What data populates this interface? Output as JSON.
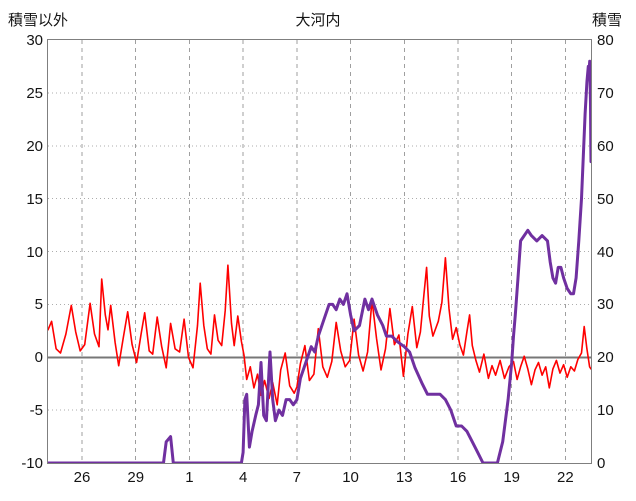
{
  "header": {
    "left_axis_title": "積雪以外",
    "title": "大河内",
    "right_axis_title": "積雪"
  },
  "colors": {
    "background": "#ffffff",
    "text": "#141414",
    "frame": "#7f7f7f",
    "grid_vertical": "#9f9f9f",
    "grid_horizontal": "#adadad",
    "zero_line": "#777777",
    "temperature_line": "#ff0000",
    "snow_line": "#7030a0"
  },
  "chart_data": {
    "type": "line",
    "title": "大河内",
    "grid": true,
    "legend": "none",
    "x_axis": {
      "unit": "date (12/26 - 1/22 ticks, every 3 days)",
      "tick_labels": [
        "26",
        "29",
        "1",
        "4",
        "7",
        "10",
        "13",
        "16",
        "19",
        "22"
      ],
      "tick_values": [
        0,
        3,
        6,
        9,
        12,
        15,
        18,
        21,
        24,
        27
      ],
      "range": [
        -1.9,
        28.43
      ]
    },
    "y_axis_left": {
      "label": "積雪以外",
      "ticks": [
        30,
        25,
        20,
        15,
        10,
        5,
        0,
        -5,
        -10
      ],
      "range": [
        -10,
        30
      ]
    },
    "y_axis_right": {
      "label": "積雪",
      "ticks": [
        80,
        70,
        60,
        50,
        40,
        30,
        20,
        10,
        0
      ],
      "range": [
        0,
        80
      ]
    },
    "series": [
      {
        "name": "積雪以外",
        "axis": "left",
        "color": "#ff0000",
        "width": 1.6,
        "points": [
          [
            -1.9,
            2.6
          ],
          [
            -1.7,
            3.4
          ],
          [
            -1.45,
            0.8
          ],
          [
            -1.2,
            0.4
          ],
          [
            -0.9,
            2.2
          ],
          [
            -0.6,
            4.9
          ],
          [
            -0.35,
            2.4
          ],
          [
            -0.1,
            0.6
          ],
          [
            0.15,
            1.2
          ],
          [
            0.45,
            5.1
          ],
          [
            0.7,
            2.2
          ],
          [
            0.95,
            1.0
          ],
          [
            1.1,
            7.4
          ],
          [
            1.3,
            4.0
          ],
          [
            1.45,
            2.6
          ],
          [
            1.6,
            4.9
          ],
          [
            1.85,
            1.4
          ],
          [
            2.05,
            -0.8
          ],
          [
            2.3,
            1.8
          ],
          [
            2.55,
            4.3
          ],
          [
            2.8,
            1.2
          ],
          [
            3.05,
            -0.5
          ],
          [
            3.3,
            2.2
          ],
          [
            3.5,
            4.2
          ],
          [
            3.75,
            0.6
          ],
          [
            3.95,
            0.3
          ],
          [
            4.2,
            3.8
          ],
          [
            4.45,
            1.0
          ],
          [
            4.7,
            -1.0
          ],
          [
            4.95,
            3.2
          ],
          [
            5.2,
            0.8
          ],
          [
            5.45,
            0.5
          ],
          [
            5.7,
            3.6
          ],
          [
            5.95,
            0.0
          ],
          [
            6.2,
            -1.0
          ],
          [
            6.45,
            3.0
          ],
          [
            6.6,
            7.0
          ],
          [
            6.8,
            3.0
          ],
          [
            7.0,
            0.8
          ],
          [
            7.2,
            0.3
          ],
          [
            7.4,
            4.0
          ],
          [
            7.6,
            1.6
          ],
          [
            7.8,
            1.1
          ],
          [
            8.0,
            4.4
          ],
          [
            8.15,
            8.7
          ],
          [
            8.35,
            3.2
          ],
          [
            8.5,
            1.1
          ],
          [
            8.7,
            3.9
          ],
          [
            8.9,
            1.5
          ],
          [
            9.05,
            0.2
          ],
          [
            9.2,
            -2.1
          ],
          [
            9.4,
            -0.9
          ],
          [
            9.6,
            -2.9
          ],
          [
            9.8,
            -1.6
          ],
          [
            10.0,
            -3.6
          ],
          [
            10.2,
            -2.2
          ],
          [
            10.45,
            -3.9
          ],
          [
            10.65,
            -2.4
          ],
          [
            10.9,
            -4.5
          ],
          [
            11.1,
            -1.2
          ],
          [
            11.35,
            0.4
          ],
          [
            11.6,
            -2.7
          ],
          [
            11.85,
            -3.4
          ],
          [
            12.0,
            -2.8
          ],
          [
            12.2,
            -0.6
          ],
          [
            12.45,
            1.1
          ],
          [
            12.7,
            -2.2
          ],
          [
            12.95,
            -1.6
          ],
          [
            13.2,
            2.7
          ],
          [
            13.45,
            -0.9
          ],
          [
            13.7,
            -1.9
          ],
          [
            13.95,
            -0.4
          ],
          [
            14.2,
            3.3
          ],
          [
            14.45,
            0.6
          ],
          [
            14.7,
            -0.9
          ],
          [
            14.95,
            -0.3
          ],
          [
            15.2,
            3.6
          ],
          [
            15.45,
            0.2
          ],
          [
            15.7,
            -1.3
          ],
          [
            15.95,
            0.5
          ],
          [
            16.2,
            5.4
          ],
          [
            16.45,
            1.8
          ],
          [
            16.7,
            -1.2
          ],
          [
            16.95,
            0.8
          ],
          [
            17.2,
            4.6
          ],
          [
            17.45,
            1.2
          ],
          [
            17.7,
            2.1
          ],
          [
            17.95,
            -1.8
          ],
          [
            18.2,
            2.2
          ],
          [
            18.45,
            4.8
          ],
          [
            18.7,
            0.9
          ],
          [
            18.9,
            2.4
          ],
          [
            19.1,
            6.0
          ],
          [
            19.25,
            8.5
          ],
          [
            19.4,
            3.9
          ],
          [
            19.6,
            2.0
          ],
          [
            19.9,
            3.4
          ],
          [
            20.1,
            5.2
          ],
          [
            20.3,
            9.4
          ],
          [
            20.5,
            4.6
          ],
          [
            20.7,
            1.7
          ],
          [
            20.9,
            2.8
          ],
          [
            21.1,
            1.2
          ],
          [
            21.3,
            0.2
          ],
          [
            21.5,
            2.4
          ],
          [
            21.65,
            4.0
          ],
          [
            21.8,
            1.1
          ],
          [
            22.0,
            -0.3
          ],
          [
            22.2,
            -1.4
          ],
          [
            22.45,
            0.3
          ],
          [
            22.7,
            -2.0
          ],
          [
            22.9,
            -0.8
          ],
          [
            23.1,
            -1.7
          ],
          [
            23.35,
            -0.3
          ],
          [
            23.6,
            -2.0
          ],
          [
            23.85,
            -0.9
          ],
          [
            24.1,
            -0.4
          ],
          [
            24.3,
            -2.1
          ],
          [
            24.5,
            -0.9
          ],
          [
            24.7,
            0.1
          ],
          [
            24.9,
            -1.1
          ],
          [
            25.1,
            -2.6
          ],
          [
            25.3,
            -1.2
          ],
          [
            25.5,
            -0.5
          ],
          [
            25.7,
            -1.7
          ],
          [
            25.9,
            -0.9
          ],
          [
            26.1,
            -2.9
          ],
          [
            26.3,
            -1.1
          ],
          [
            26.5,
            -0.3
          ],
          [
            26.7,
            -1.5
          ],
          [
            26.9,
            -0.7
          ],
          [
            27.1,
            -1.9
          ],
          [
            27.3,
            -0.9
          ],
          [
            27.5,
            -1.3
          ],
          [
            27.7,
            -0.2
          ],
          [
            27.9,
            0.4
          ],
          [
            28.05,
            2.9
          ],
          [
            28.2,
            0.8
          ],
          [
            28.35,
            -0.9
          ],
          [
            28.43,
            -1.1
          ]
        ]
      },
      {
        "name": "積雪",
        "axis": "right",
        "color": "#7030a0",
        "width": 3,
        "points": [
          [
            -1.9,
            0
          ],
          [
            4.55,
            0
          ],
          [
            4.7,
            4
          ],
          [
            4.95,
            5
          ],
          [
            5.1,
            0
          ],
          [
            8.9,
            0
          ],
          [
            9.0,
            2
          ],
          [
            9.1,
            12
          ],
          [
            9.2,
            13
          ],
          [
            9.35,
            3
          ],
          [
            9.5,
            6
          ],
          [
            9.7,
            9
          ],
          [
            9.85,
            11
          ],
          [
            10.0,
            19
          ],
          [
            10.15,
            9
          ],
          [
            10.3,
            8
          ],
          [
            10.5,
            21
          ],
          [
            10.65,
            12
          ],
          [
            10.8,
            8
          ],
          [
            11.0,
            10
          ],
          [
            11.2,
            9
          ],
          [
            11.4,
            12
          ],
          [
            11.6,
            12
          ],
          [
            11.8,
            11
          ],
          [
            12.0,
            12
          ],
          [
            12.2,
            16
          ],
          [
            12.5,
            19
          ],
          [
            12.8,
            22
          ],
          [
            13.0,
            21
          ],
          [
            13.2,
            24
          ],
          [
            13.5,
            27
          ],
          [
            13.8,
            30
          ],
          [
            14.0,
            30
          ],
          [
            14.2,
            29
          ],
          [
            14.4,
            31
          ],
          [
            14.6,
            30
          ],
          [
            14.8,
            32
          ],
          [
            15.0,
            28
          ],
          [
            15.2,
            25
          ],
          [
            15.5,
            26
          ],
          [
            15.8,
            31
          ],
          [
            16.0,
            29
          ],
          [
            16.2,
            31
          ],
          [
            16.5,
            28
          ],
          [
            16.8,
            26
          ],
          [
            17.0,
            24
          ],
          [
            17.3,
            24
          ],
          [
            17.6,
            23
          ],
          [
            18.0,
            22
          ],
          [
            18.3,
            21
          ],
          [
            18.6,
            18
          ],
          [
            19.0,
            15
          ],
          [
            19.3,
            13
          ],
          [
            19.6,
            13
          ],
          [
            20.0,
            13
          ],
          [
            20.3,
            12
          ],
          [
            20.6,
            10
          ],
          [
            20.9,
            7
          ],
          [
            21.2,
            7
          ],
          [
            21.5,
            6
          ],
          [
            21.8,
            4
          ],
          [
            22.1,
            2
          ],
          [
            22.4,
            0
          ],
          [
            23.2,
            0
          ],
          [
            23.5,
            4
          ],
          [
            23.8,
            12
          ],
          [
            24.0,
            19
          ],
          [
            24.1,
            24
          ],
          [
            24.2,
            28
          ],
          [
            24.35,
            35
          ],
          [
            24.5,
            42
          ],
          [
            24.7,
            43
          ],
          [
            24.9,
            44
          ],
          [
            25.1,
            43
          ],
          [
            25.4,
            42
          ],
          [
            25.7,
            43
          ],
          [
            26.0,
            42
          ],
          [
            26.15,
            38
          ],
          [
            26.3,
            35
          ],
          [
            26.45,
            34
          ],
          [
            26.6,
            37
          ],
          [
            26.75,
            37
          ],
          [
            26.9,
            35
          ],
          [
            27.1,
            33
          ],
          [
            27.3,
            32
          ],
          [
            27.45,
            32
          ],
          [
            27.6,
            35
          ],
          [
            27.75,
            42
          ],
          [
            27.9,
            50
          ],
          [
            28.0,
            58
          ],
          [
            28.1,
            66
          ],
          [
            28.2,
            72
          ],
          [
            28.28,
            75
          ],
          [
            28.32,
            74
          ],
          [
            28.36,
            76
          ],
          [
            28.4,
            68
          ],
          [
            28.42,
            60
          ],
          [
            28.43,
            57
          ]
        ]
      }
    ]
  }
}
